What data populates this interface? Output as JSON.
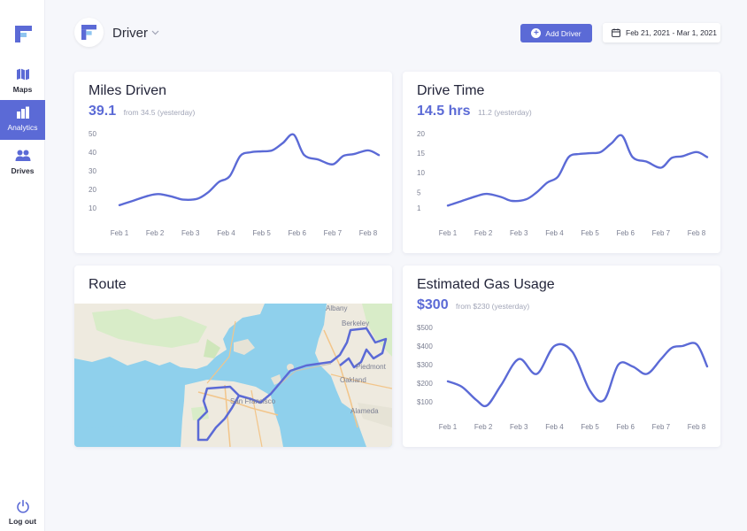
{
  "sidebar": {
    "items": [
      {
        "label": "Maps",
        "icon": "map-icon",
        "active": false
      },
      {
        "label": "Analytics",
        "icon": "bar-chart-icon",
        "active": true
      },
      {
        "label": "Drives",
        "icon": "users-icon",
        "active": false
      }
    ],
    "logout_label": "Log out"
  },
  "header": {
    "title": "Driver",
    "add_button_label": "Add Driver",
    "date_range": "Feb 21, 2021 - Mar 1, 2021"
  },
  "colors": {
    "accent": "#5b6ad6",
    "background": "#f6f7fb",
    "card": "#ffffff"
  },
  "cards": {
    "miles": {
      "title": "Miles Driven",
      "value": "39.1",
      "sub": "from 34.5 (yesterday)"
    },
    "drive": {
      "title": "Drive Time",
      "value": "14.5 hrs",
      "sub": "11.2 (yesterday)"
    },
    "route": {
      "title": "Route"
    },
    "gas": {
      "title": "Estimated Gas Usage",
      "value": "$300",
      "sub": "from $230 (yesterday)"
    }
  },
  "map": {
    "labels": [
      "San Francisco",
      "Berkeley",
      "Oakland",
      "Alameda",
      "Albany",
      "Piedmont"
    ]
  },
  "chart_data": [
    {
      "id": "miles",
      "type": "line",
      "categories": [
        "Feb 1",
        "Feb 2",
        "Feb 3",
        "Feb 4",
        "Feb 5",
        "Feb 6",
        "Feb 7",
        "Feb 8"
      ],
      "yticks": [
        "10",
        "20",
        "30",
        "40",
        "50"
      ],
      "ytick_values": [
        10,
        20,
        30,
        40,
        50
      ],
      "ylim": [
        10,
        50
      ],
      "x": [
        0,
        0.4,
        0.8,
        1.1,
        1.5,
        1.8,
        2.2,
        2.5,
        2.8,
        3.1,
        3.4,
        3.7,
        4.0,
        4.3,
        4.6,
        4.9,
        5.2,
        5.6,
        6.0,
        6.3,
        6.6,
        7.0,
        7.3
      ],
      "values": [
        11.5,
        14,
        16.5,
        17.5,
        16,
        14.5,
        15,
        18.5,
        24,
        27,
        38,
        40,
        40.5,
        41,
        45,
        49.5,
        38.5,
        36,
        33.5,
        38,
        39,
        41,
        38.5
      ]
    },
    {
      "id": "drive",
      "type": "line",
      "categories": [
        "Feb 1",
        "Feb 2",
        "Feb 3",
        "Feb 4",
        "Feb 5",
        "Feb 6",
        "Feb 7",
        "Feb 8"
      ],
      "yticks": [
        "1",
        "5",
        "10",
        "15",
        "20"
      ],
      "ytick_values": [
        1,
        5,
        10,
        15,
        20
      ],
      "ylim": [
        1,
        20
      ],
      "x": [
        0,
        0.4,
        0.8,
        1.1,
        1.5,
        1.8,
        2.2,
        2.5,
        2.8,
        3.1,
        3.4,
        3.7,
        4.0,
        4.3,
        4.6,
        4.9,
        5.2,
        5.6,
        6.0,
        6.3,
        6.6,
        7.0,
        7.3
      ],
      "values": [
        1.6,
        2.8,
        4,
        4.6,
        3.8,
        2.8,
        3.2,
        5,
        7.5,
        9,
        14,
        14.8,
        15,
        15.3,
        17.5,
        19.5,
        14,
        12.8,
        11.3,
        13.8,
        14.2,
        15.3,
        14
      ]
    },
    {
      "id": "gas",
      "type": "line",
      "categories": [
        "Feb 1",
        "Feb 2",
        "Feb 3",
        "Feb 4",
        "Feb 5",
        "Feb 6",
        "Feb 7",
        "Feb 8"
      ],
      "yticks": [
        "$100",
        "$200",
        "$300",
        "$400",
        "$500"
      ],
      "ytick_values": [
        100,
        200,
        300,
        400,
        500
      ],
      "ylim": [
        100,
        500
      ],
      "x": [
        0,
        0.4,
        0.8,
        1.1,
        1.5,
        2.0,
        2.5,
        3.0,
        3.5,
        4.0,
        4.4,
        4.8,
        5.2,
        5.6,
        6.0,
        6.3,
        6.6,
        7.0,
        7.3
      ],
      "values": [
        210,
        180,
        110,
        80,
        190,
        330,
        250,
        400,
        370,
        160,
        110,
        300,
        290,
        250,
        330,
        390,
        400,
        410,
        290
      ]
    }
  ]
}
